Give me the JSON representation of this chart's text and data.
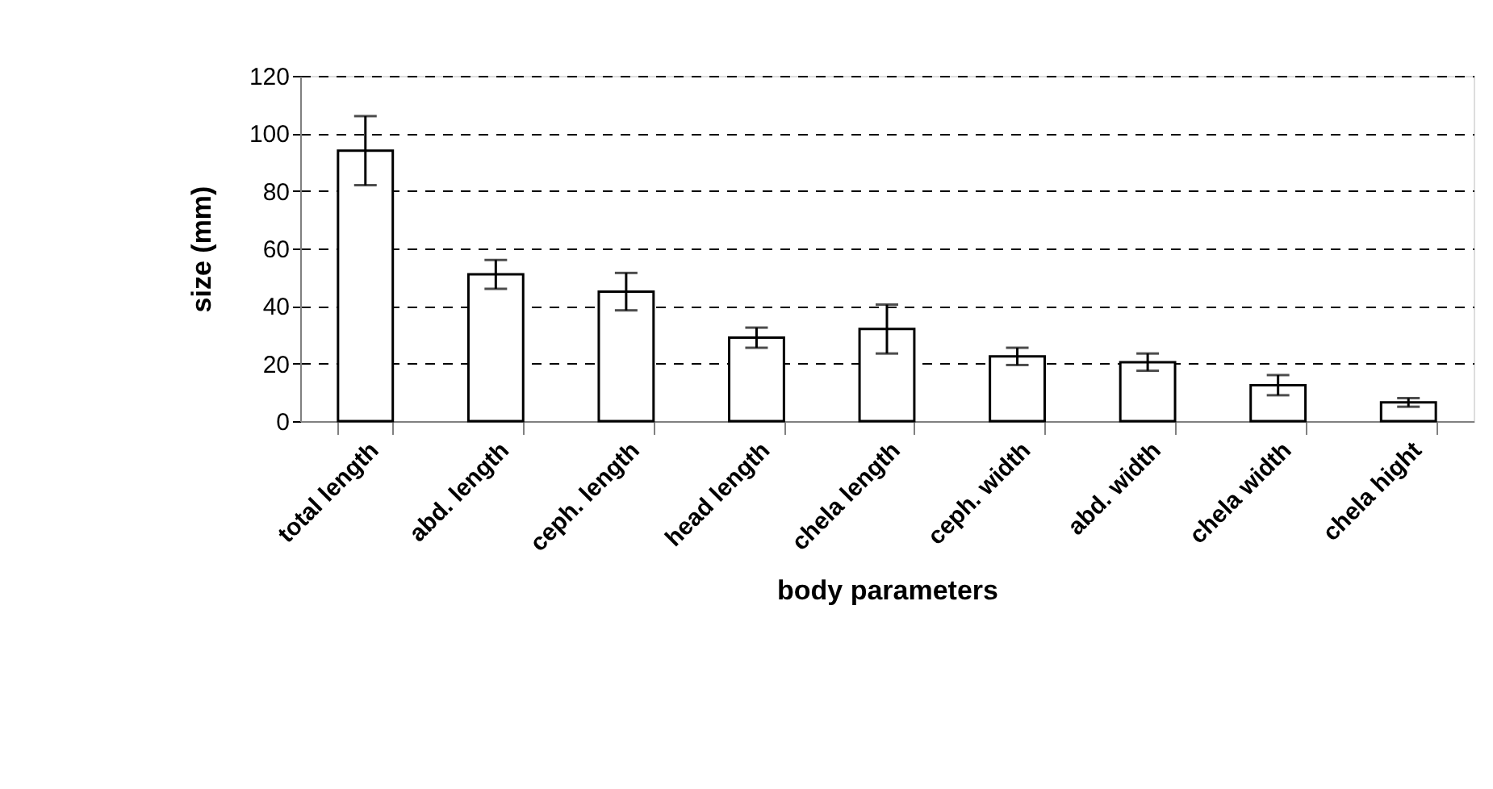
{
  "chart_data": {
    "type": "bar",
    "xlabel": "body parameters",
    "ylabel": "size (mm)",
    "categories": [
      "total length",
      "abd. length",
      "ceph. length",
      "head length",
      "chela length",
      "ceph. width",
      "abd. width",
      "chela width",
      "chela hight"
    ],
    "values": [
      94,
      51,
      45,
      29,
      32,
      22.5,
      20.5,
      12.5,
      6.5
    ],
    "errors": [
      12,
      5,
      6.5,
      3.5,
      8.5,
      3,
      3,
      3.5,
      1.5
    ],
    "color": "#ffffff",
    "ylim": [
      0,
      120
    ],
    "yticks": [
      0,
      20,
      40,
      60,
      80,
      100,
      120
    ],
    "grid": "y"
  }
}
